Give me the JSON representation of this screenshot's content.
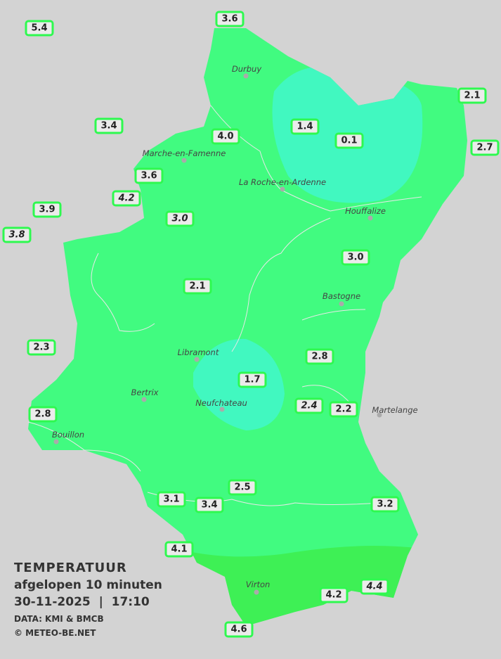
{
  "legend": {
    "title": "TEMPERATUUR",
    "period": "afgelopen 10 minuten",
    "datetime": "30-11-2025  |  17:10",
    "source": "DATA: KMI & BMCB",
    "copyright": "© METEO-BE.NET"
  },
  "colors": {
    "background": "#d3d3d3",
    "zone_2_4": "#41fb80",
    "zone_0_2": "#41f8c0",
    "zone_4_6": "#3ef055",
    "label_border": "#2ef94f"
  },
  "cities": [
    "Durbuy",
    "Marche-en-Famenne",
    "La Roche-en-Ardenne",
    "Houffalize",
    "Bastogne",
    "Libramont",
    "Bertrix",
    "Neufchateau",
    "Bouillon",
    "Martelange",
    "Virton"
  ],
  "stations": [
    {
      "value": "5.4",
      "italic": false
    },
    {
      "value": "3.6",
      "italic": false
    },
    {
      "value": "2.1",
      "italic": false
    },
    {
      "value": "2.7",
      "italic": false
    },
    {
      "value": "3.4",
      "italic": false
    },
    {
      "value": "1.4",
      "italic": false
    },
    {
      "value": "0.1",
      "italic": false
    },
    {
      "value": "4.0",
      "italic": false
    },
    {
      "value": "3.6",
      "italic": false
    },
    {
      "value": "4.2",
      "italic": true
    },
    {
      "value": "3.9",
      "italic": false
    },
    {
      "value": "3.8",
      "italic": true
    },
    {
      "value": "3.0",
      "italic": true
    },
    {
      "value": "3.0",
      "italic": false
    },
    {
      "value": "2.1",
      "italic": false
    },
    {
      "value": "2.3",
      "italic": false
    },
    {
      "value": "2.8",
      "italic": false
    },
    {
      "value": "1.7",
      "italic": false
    },
    {
      "value": "2.4",
      "italic": true
    },
    {
      "value": "2.2",
      "italic": false
    },
    {
      "value": "2.8",
      "italic": false
    },
    {
      "value": "2.5",
      "italic": false
    },
    {
      "value": "3.1",
      "italic": false
    },
    {
      "value": "3.4",
      "italic": false
    },
    {
      "value": "3.2",
      "italic": false
    },
    {
      "value": "4.1",
      "italic": false
    },
    {
      "value": "4.2",
      "italic": false
    },
    {
      "value": "4.4",
      "italic": true
    },
    {
      "value": "4.6",
      "italic": false
    }
  ]
}
